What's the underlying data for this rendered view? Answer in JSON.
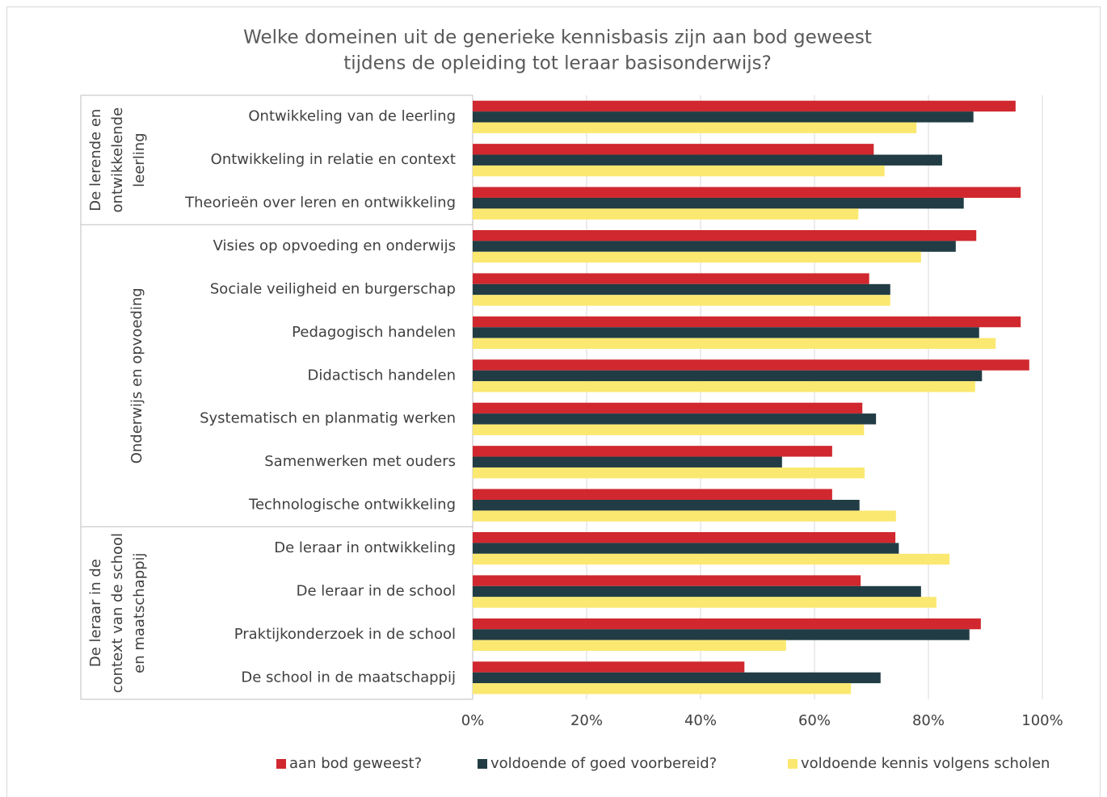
{
  "chart_data": {
    "type": "bar",
    "orientation": "horizontal",
    "title": [
      "Welke domeinen uit de generieke kennisbasis zijn aan bod geweest",
      "tijdens de opleiding tot leraar basisonderwijs?"
    ],
    "groups": [
      {
        "label": [
          "De lerende en",
          "ontwikkelende",
          "leerling"
        ],
        "categories": [
          "Ontwikkeling van de leerling",
          "Ontwikkeling in relatie en context",
          "Theorieën over leren en ontwikkeling"
        ]
      },
      {
        "label": [
          "Onderwijs en opvoeding"
        ],
        "categories": [
          "Visies op opvoeding en onderwijs",
          "Sociale veiligheid en burgerschap",
          "Pedagogisch handelen",
          "Didactisch handelen",
          "Systematisch en planmatig werken",
          "Samenwerken met ouders",
          "Technologische ontwikkeling"
        ]
      },
      {
        "label": [
          "De leraar in de",
          "context van de school",
          "en maatschappij"
        ],
        "categories": [
          "De leraar in ontwikkeling",
          "De leraar in de school",
          "Praktijkonderzoek in de school",
          "De school in de maatschappij"
        ]
      }
    ],
    "series": [
      {
        "name": "aan bod geweest?",
        "color": "#d0282e",
        "values": [
          95.3,
          70.4,
          96.2,
          88.4,
          69.6,
          96.2,
          97.7,
          68.4,
          63.1,
          63.1,
          74.2,
          68.1,
          89.2,
          47.7
        ]
      },
      {
        "name": "voldoende of goed voorbereid?",
        "color": "#213c44",
        "values": [
          87.9,
          82.4,
          86.2,
          84.8,
          73.3,
          88.9,
          89.4,
          70.8,
          54.3,
          67.9,
          74.8,
          78.7,
          87.2,
          71.6
        ]
      },
      {
        "name": "voldoende kennis volgens scholen",
        "color": "#fbe870",
        "values": [
          77.9,
          72.3,
          67.7,
          78.7,
          73.3,
          91.8,
          88.2,
          68.7,
          68.8,
          74.3,
          83.7,
          81.4,
          55.0,
          66.4
        ]
      }
    ],
    "xlim": [
      0,
      100
    ],
    "xticks": [
      {
        "value": 0,
        "label": "0%"
      },
      {
        "value": 20,
        "label": "20%"
      },
      {
        "value": 40,
        "label": "40%"
      },
      {
        "value": 60,
        "label": "60%"
      },
      {
        "value": 80,
        "label": "80%"
      },
      {
        "value": 100,
        "label": "100%"
      }
    ],
    "grid": true,
    "legend": "bottom"
  }
}
